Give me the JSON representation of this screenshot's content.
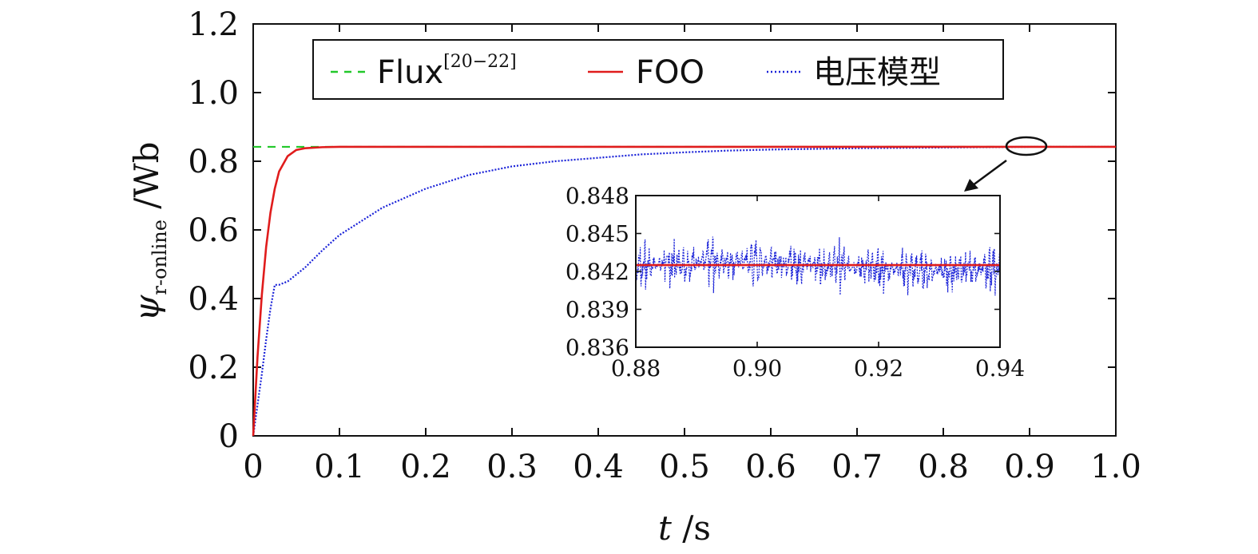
{
  "chart_data": {
    "type": "line",
    "xlabel": "t /s",
    "ylabel": "ψr-online /Wb",
    "xlim": [
      0,
      1.0
    ],
    "ylim": [
      0,
      1.2
    ],
    "x_ticks": [
      "0",
      "0.1",
      "0.2",
      "0.3",
      "0.4",
      "0.5",
      "0.6",
      "0.7",
      "0.8",
      "0.9",
      "1.0"
    ],
    "y_ticks": [
      "0",
      "0.2",
      "0.4",
      "0.6",
      "0.8",
      "1.0",
      "1.2"
    ],
    "grid": false,
    "legend_position": "top",
    "series": [
      {
        "name": "Flux[20−22]",
        "style": "dashed",
        "color": "#22c82a",
        "x": [
          0,
          1.0
        ],
        "y": [
          0.842,
          0.842
        ]
      },
      {
        "name": "FOO",
        "style": "solid",
        "color": "#e01c1c",
        "x": [
          0,
          0.005,
          0.01,
          0.015,
          0.02,
          0.025,
          0.03,
          0.04,
          0.05,
          0.06,
          0.08,
          0.1,
          0.2,
          0.5,
          1.0
        ],
        "y": [
          0,
          0.23,
          0.41,
          0.55,
          0.65,
          0.72,
          0.77,
          0.815,
          0.833,
          0.838,
          0.841,
          0.842,
          0.842,
          0.842,
          0.842
        ]
      },
      {
        "name": "电压模型",
        "style": "dotted",
        "color": "#1a22d8",
        "x": [
          0,
          0.005,
          0.01,
          0.015,
          0.02,
          0.025,
          0.03,
          0.04,
          0.06,
          0.08,
          0.1,
          0.15,
          0.2,
          0.25,
          0.3,
          0.35,
          0.4,
          0.45,
          0.5,
          0.55,
          0.6,
          0.65,
          0.7,
          0.75,
          0.8,
          0.85,
          0.9,
          0.95,
          1.0
        ],
        "y": [
          0,
          0.09,
          0.18,
          0.28,
          0.37,
          0.44,
          0.44,
          0.45,
          0.49,
          0.54,
          0.585,
          0.665,
          0.72,
          0.76,
          0.785,
          0.8,
          0.81,
          0.82,
          0.826,
          0.831,
          0.834,
          0.836,
          0.838,
          0.839,
          0.84,
          0.841,
          0.842,
          0.842,
          0.842
        ]
      }
    ],
    "annotations": [
      {
        "type": "ellipse",
        "x": 0.9,
        "y": 0.842
      },
      {
        "type": "arrow",
        "from": [
          0.89,
          0.8
        ],
        "to": [
          0.87,
          0.72
        ]
      }
    ],
    "inset": {
      "type": "line",
      "xlim": [
        0.88,
        0.94
      ],
      "ylim": [
        0.836,
        0.848
      ],
      "x_ticks": [
        "0.88",
        "0.90",
        "0.92",
        "0.94"
      ],
      "y_ticks": [
        "0.836",
        "0.839",
        "0.842",
        "0.845",
        "0.848"
      ],
      "series": [
        {
          "name": "FOO",
          "color": "#e01c1c",
          "x": [
            0.88,
            0.94
          ],
          "y": [
            0.8425,
            0.8425
          ]
        },
        {
          "name": "电压模型",
          "color": "#1a22d8",
          "mean": 0.8425,
          "amplitude": 0.0028
        }
      ]
    }
  },
  "legend": {
    "flux_main": "Flux",
    "flux_sup": "[20−22]",
    "foo": "FOO",
    "voltage": "电压模型"
  }
}
